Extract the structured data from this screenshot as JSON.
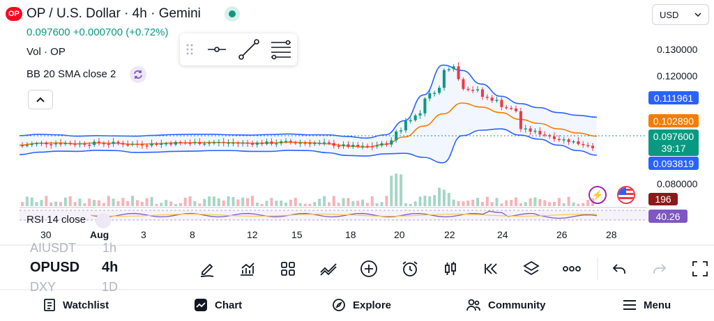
{
  "header": {
    "logo_text": "OP",
    "title": "OP / U.S. Dollar · 4h · Gemini",
    "price_line": "0.097600 +0.000700 (+0.72%)",
    "indicator_vol": "Vol · OP",
    "indicator_bb": "BB 20 SMA close 2",
    "indicator_rsi": "RSI 14 close",
    "currency": "USD"
  },
  "price_axis": {
    "ticks": [
      "0.130000",
      "0.120000",
      "0.080000"
    ],
    "labels": [
      {
        "text": "0.111961",
        "color": "#2962ff"
      },
      {
        "text": "0.102890",
        "color": "#f57c00"
      },
      {
        "text": "0.097600",
        "sub": "39:17",
        "color": "#089981"
      },
      {
        "text": "0.093819",
        "color": "#2962ff"
      }
    ],
    "volume_label": "196",
    "rsi_label": "40.26"
  },
  "time_axis": [
    "30",
    "Aug",
    "3",
    "8",
    "12",
    "15",
    "18",
    "20",
    "22",
    "24",
    "26",
    "28"
  ],
  "watchlist_strip": {
    "above": {
      "symbol": "AIUSDT",
      "interval": "1h"
    },
    "current": {
      "symbol": "OPUSD",
      "interval": "4h"
    },
    "below": {
      "symbol": "DXY",
      "interval": "1D"
    }
  },
  "colors": {
    "up": "#089981",
    "down": "#f23645",
    "bb": "#2962ff",
    "sma": "#f57c00",
    "rsi": "#7e57c2"
  },
  "tools": [
    "pencil-icon",
    "bar-chart-icon",
    "grid-icon",
    "trend-icon",
    "plus-circle-icon",
    "alarm-icon",
    "candles-icon",
    "rewind-icon",
    "layers-icon",
    "more-icon",
    "undo-icon",
    "redo-icon",
    "fullscreen-icon"
  ],
  "bottom_nav": {
    "watchlist": "Watchlist",
    "chart": "Chart",
    "explore": "Explore",
    "community": "Community",
    "menu": "Menu"
  },
  "chart_data": {
    "type": "candlestick",
    "ylim": [
      0.072,
      0.135
    ],
    "series": [
      {
        "name": "BB 20 SMA close 2",
        "values": [
          0.0945,
          0.0952,
          0.0953,
          0.095,
          0.0953,
          0.0952,
          0.0948,
          0.095,
          0.0953,
          0.0954,
          0.0955,
          0.0954,
          0.0952,
          0.0953,
          0.0956,
          0.0954,
          0.095,
          0.0942,
          0.0938,
          0.0948,
          0.0975,
          0.1015,
          0.106,
          0.11,
          0.1085,
          0.1065,
          0.104,
          0.1025,
          0.1005,
          0.099,
          0.0978
        ]
      }
    ]
  }
}
